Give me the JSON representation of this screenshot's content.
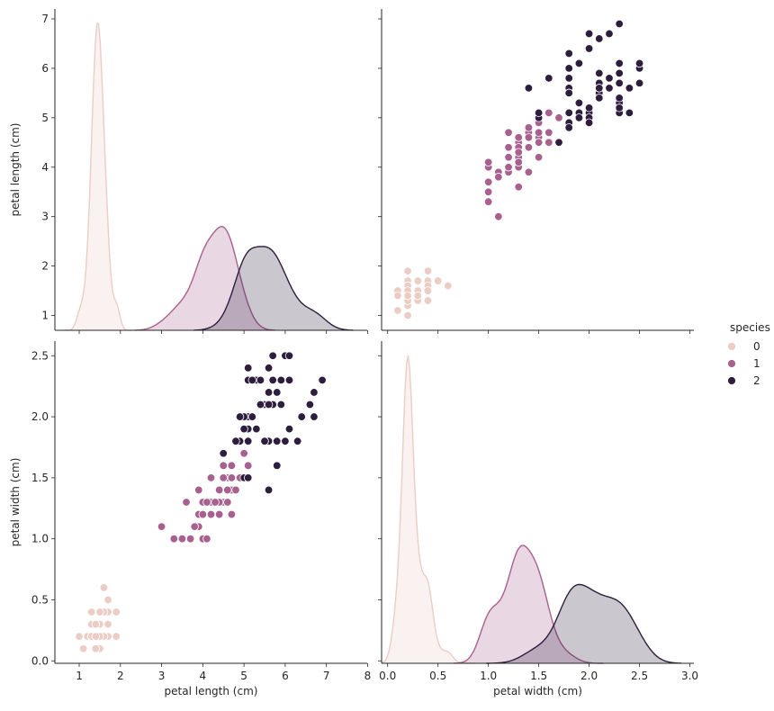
{
  "chart_data": {
    "type": "pairplot",
    "hue": "species",
    "legend": {
      "title": "species",
      "placement": "right",
      "entries": [
        {
          "label": "0",
          "color": "#ebcdc6"
        },
        {
          "label": "1",
          "color": "#a8618e"
        },
        {
          "label": "2",
          "color": "#2d1e3e"
        }
      ]
    },
    "variables": [
      {
        "name": "petal length (cm)",
        "lim": [
          0.41,
          7.99
        ],
        "ticks": [
          1,
          2,
          3,
          4,
          5,
          6,
          7,
          8
        ],
        "tick_labels": [
          "1",
          "2",
          "3",
          "4",
          "5",
          "6",
          "7",
          "8"
        ],
        "ylim": [
          0.7,
          7.2
        ],
        "yticks": [
          1,
          2,
          3,
          4,
          5,
          6,
          7
        ],
        "ytick_labels": [
          "1",
          "2",
          "3",
          "4",
          "5",
          "6",
          "7"
        ]
      },
      {
        "name": "petal width (cm)",
        "lim": [
          -0.06,
          3.04
        ],
        "ticks": [
          0.0,
          0.5,
          1.0,
          1.5,
          2.0,
          2.5,
          3.0
        ],
        "tick_labels": [
          "0.0",
          "0.5",
          "1.0",
          "1.5",
          "2.0",
          "2.5",
          "3.0"
        ],
        "ylim": [
          -0.02,
          2.62
        ],
        "yticks": [
          0.0,
          0.5,
          1.0,
          1.5,
          2.0,
          2.5
        ],
        "ytick_labels": [
          "0.0",
          "0.5",
          "1.0",
          "1.5",
          "2.0",
          "2.5"
        ]
      }
    ],
    "series": [
      {
        "name": "0",
        "petal_length": [
          1.4,
          1.4,
          1.3,
          1.5,
          1.4,
          1.7,
          1.4,
          1.5,
          1.4,
          1.5,
          1.5,
          1.6,
          1.4,
          1.1,
          1.2,
          1.5,
          1.3,
          1.4,
          1.7,
          1.5,
          1.7,
          1.5,
          1.0,
          1.7,
          1.9,
          1.6,
          1.6,
          1.5,
          1.4,
          1.6,
          1.6,
          1.5,
          1.5,
          1.4,
          1.5,
          1.2,
          1.3,
          1.4,
          1.3,
          1.5,
          1.3,
          1.3,
          1.3,
          1.6,
          1.9,
          1.4,
          1.6,
          1.4,
          1.5,
          1.4
        ],
        "petal_width": [
          0.2,
          0.2,
          0.2,
          0.2,
          0.2,
          0.4,
          0.3,
          0.2,
          0.2,
          0.1,
          0.2,
          0.2,
          0.1,
          0.1,
          0.2,
          0.4,
          0.4,
          0.3,
          0.3,
          0.3,
          0.2,
          0.4,
          0.2,
          0.5,
          0.2,
          0.2,
          0.4,
          0.2,
          0.2,
          0.2,
          0.2,
          0.4,
          0.1,
          0.2,
          0.2,
          0.2,
          0.2,
          0.1,
          0.2,
          0.2,
          0.3,
          0.3,
          0.2,
          0.6,
          0.4,
          0.3,
          0.2,
          0.2,
          0.2,
          0.2
        ]
      },
      {
        "name": "1",
        "petal_length": [
          4.7,
          4.5,
          4.9,
          4.0,
          4.6,
          4.5,
          4.7,
          3.3,
          4.6,
          3.9,
          3.5,
          4.2,
          4.0,
          4.7,
          3.6,
          4.4,
          4.5,
          4.1,
          4.5,
          3.9,
          4.8,
          4.0,
          4.9,
          4.7,
          4.3,
          4.4,
          4.8,
          5.0,
          4.5,
          3.5,
          3.8,
          3.7,
          3.9,
          5.1,
          4.5,
          4.5,
          4.7,
          4.4,
          4.1,
          4.0,
          4.4,
          4.6,
          4.0,
          3.3,
          4.2,
          4.2,
          4.2,
          4.3,
          3.0,
          4.1
        ],
        "petal_width": [
          1.4,
          1.5,
          1.5,
          1.3,
          1.5,
          1.3,
          1.6,
          1.0,
          1.3,
          1.4,
          1.0,
          1.5,
          1.0,
          1.4,
          1.3,
          1.4,
          1.5,
          1.0,
          1.5,
          1.1,
          1.8,
          1.3,
          1.5,
          1.2,
          1.3,
          1.4,
          1.4,
          1.7,
          1.5,
          1.0,
          1.1,
          1.0,
          1.2,
          1.6,
          1.5,
          1.6,
          1.5,
          1.3,
          1.3,
          1.3,
          1.2,
          1.4,
          1.2,
          1.0,
          1.3,
          1.2,
          1.3,
          1.3,
          1.1,
          1.3
        ]
      },
      {
        "name": "2",
        "petal_length": [
          6.0,
          5.1,
          5.9,
          5.6,
          5.8,
          6.6,
          4.5,
          6.3,
          5.8,
          6.1,
          5.1,
          5.3,
          5.5,
          5.0,
          5.1,
          5.3,
          5.5,
          6.7,
          6.9,
          5.0,
          5.7,
          4.9,
          6.7,
          4.9,
          5.7,
          6.0,
          4.8,
          4.9,
          5.6,
          5.8,
          6.1,
          6.4,
          5.6,
          5.1,
          5.6,
          6.1,
          5.6,
          5.5,
          4.8,
          5.4,
          5.6,
          5.1,
          5.1,
          5.9,
          5.7,
          5.2,
          5.0,
          5.2,
          5.4,
          5.1
        ],
        "petal_width": [
          2.5,
          1.9,
          2.1,
          1.8,
          2.2,
          2.1,
          1.7,
          1.8,
          1.8,
          2.5,
          2.0,
          1.9,
          2.1,
          2.0,
          2.4,
          2.3,
          1.8,
          2.2,
          2.3,
          1.5,
          2.3,
          2.0,
          2.0,
          1.8,
          2.1,
          1.8,
          1.8,
          1.8,
          2.1,
          1.6,
          1.9,
          2.0,
          2.2,
          1.5,
          1.4,
          2.3,
          2.4,
          1.8,
          1.8,
          2.1,
          2.4,
          2.3,
          1.9,
          2.3,
          2.5,
          2.3,
          1.9,
          2.0,
          2.3,
          1.8
        ]
      }
    ],
    "panels": [
      {
        "row": 0,
        "col": 0,
        "kind": "kde",
        "variable": "petal length (cm)",
        "ylabel": "petal length (cm)",
        "xlabel": ""
      },
      {
        "row": 0,
        "col": 1,
        "kind": "scatter",
        "x": "petal width (cm)",
        "y": "petal length (cm)",
        "ylabel": "",
        "xlabel": ""
      },
      {
        "row": 1,
        "col": 0,
        "kind": "scatter",
        "x": "petal length (cm)",
        "y": "petal width (cm)",
        "ylabel": "petal width (cm)",
        "xlabel": "petal length (cm)"
      },
      {
        "row": 1,
        "col": 1,
        "kind": "kde",
        "variable": "petal width (cm)",
        "ylabel": "",
        "xlabel": "petal width (cm)"
      }
    ]
  }
}
